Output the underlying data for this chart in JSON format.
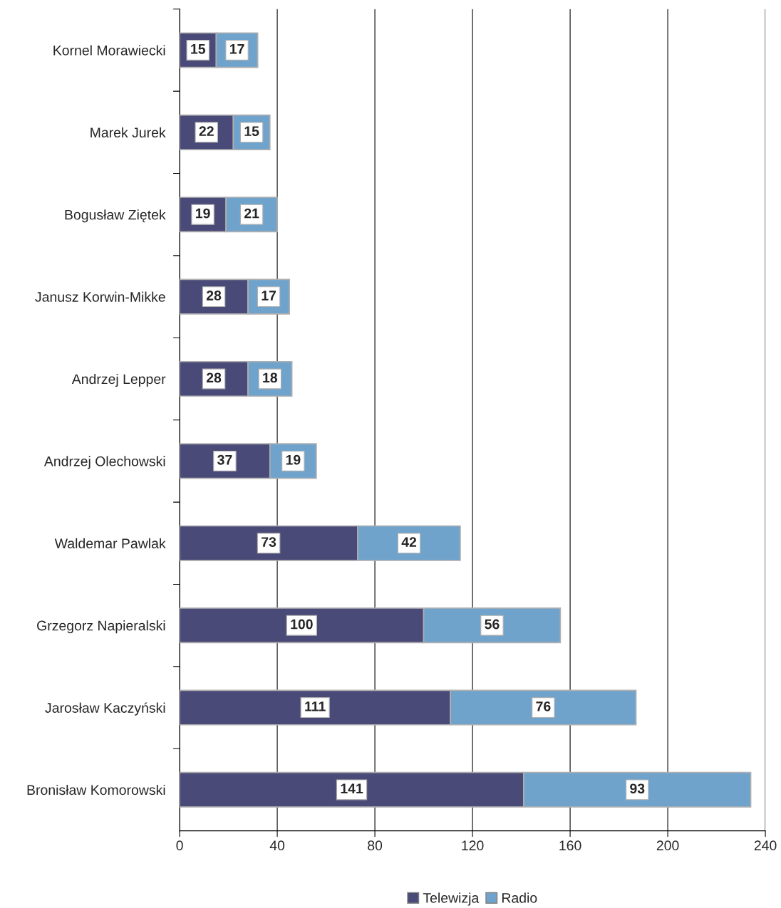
{
  "chart_data": {
    "type": "bar",
    "orientation": "horizontal",
    "stacked": true,
    "categories": [
      "Kornel Morawiecki",
      "Marek Jurek",
      "Bogusław Ziętek",
      "Janusz Korwin-Mikke",
      "Andrzej Lepper",
      "Andrzej Olechowski",
      "Waldemar Pawlak",
      "Grzegorz Napieralski",
      "Jarosław Kaczyński",
      "Bronisław Komorowski"
    ],
    "series": [
      {
        "name": "Telewizja",
        "color": "#4a4a78",
        "values": [
          15,
          22,
          19,
          28,
          28,
          37,
          73,
          100,
          111,
          141
        ]
      },
      {
        "name": "Radio",
        "color": "#6fa3cc",
        "values": [
          17,
          15,
          21,
          17,
          18,
          19,
          42,
          56,
          76,
          93
        ]
      }
    ],
    "xlim": [
      0,
      240
    ],
    "xticks": [
      0,
      40,
      80,
      120,
      160,
      200,
      240
    ],
    "grid": "x",
    "legend": "bottom",
    "data_labels": true
  }
}
